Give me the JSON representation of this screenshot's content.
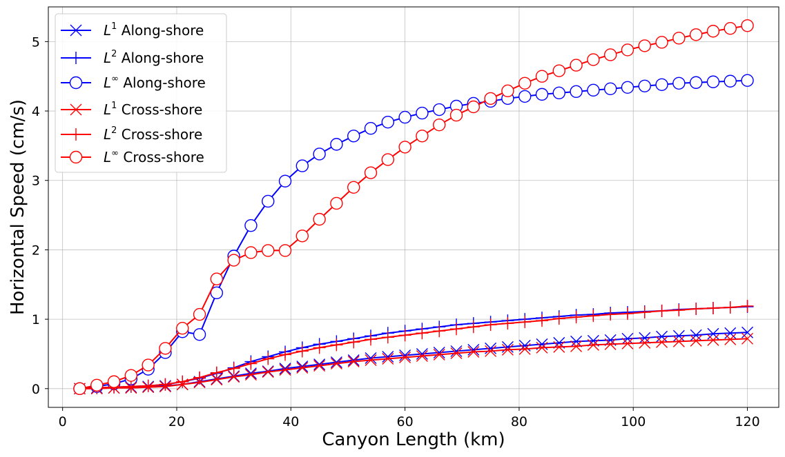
{
  "chart_data": {
    "type": "line",
    "xlabel": "Canyon Length (km)",
    "ylabel": "Horizontal Speed (cm/s)",
    "xlim": [
      -2.5,
      125.5
    ],
    "ylim": [
      -0.27,
      5.5
    ],
    "xticks": [
      0,
      20,
      40,
      60,
      80,
      100,
      120
    ],
    "yticks": [
      0,
      1,
      2,
      3,
      4,
      5
    ],
    "grid": true,
    "legend_position": "top-left",
    "x": [
      3,
      6,
      9,
      12,
      15,
      18,
      21,
      24,
      27,
      30,
      33,
      36,
      39,
      42,
      45,
      48,
      51,
      54,
      57,
      60,
      63,
      66,
      69,
      72,
      75,
      78,
      81,
      84,
      87,
      90,
      93,
      96,
      99,
      102,
      105,
      108,
      111,
      114,
      117,
      120
    ],
    "series": [
      {
        "name_base": "L",
        "name_sup": "1",
        "name_rest": " Along-shore",
        "color": "#0000ff",
        "marker": "x",
        "values": [
          0.0,
          0.01,
          0.01,
          0.02,
          0.03,
          0.04,
          0.06,
          0.1,
          0.14,
          0.18,
          0.22,
          0.25,
          0.29,
          0.32,
          0.35,
          0.38,
          0.41,
          0.44,
          0.46,
          0.48,
          0.5,
          0.52,
          0.54,
          0.56,
          0.58,
          0.6,
          0.62,
          0.64,
          0.66,
          0.68,
          0.69,
          0.7,
          0.72,
          0.73,
          0.75,
          0.76,
          0.77,
          0.79,
          0.8,
          0.81
        ]
      },
      {
        "name_base": "L",
        "name_sup": "2",
        "name_rest": " Along-shore",
        "color": "#0000ff",
        "marker": "plus",
        "values": [
          0.0,
          0.01,
          0.02,
          0.03,
          0.04,
          0.06,
          0.1,
          0.15,
          0.22,
          0.3,
          0.39,
          0.46,
          0.53,
          0.59,
          0.64,
          0.68,
          0.72,
          0.76,
          0.8,
          0.83,
          0.86,
          0.89,
          0.92,
          0.94,
          0.96,
          0.98,
          1.0,
          1.02,
          1.04,
          1.06,
          1.07,
          1.09,
          1.1,
          1.11,
          1.12,
          1.14,
          1.15,
          1.16,
          1.17,
          1.18
        ]
      },
      {
        "name_base": "L",
        "name_sup": "∞",
        "name_rest": " Along-shore",
        "color": "#0000ff",
        "marker": "circle",
        "values": [
          0.0,
          0.03,
          0.07,
          0.14,
          0.28,
          0.52,
          0.82,
          0.78,
          1.38,
          1.91,
          2.35,
          2.7,
          2.99,
          3.21,
          3.38,
          3.52,
          3.64,
          3.75,
          3.84,
          3.91,
          3.97,
          4.02,
          4.07,
          4.11,
          4.14,
          4.18,
          4.21,
          4.24,
          4.26,
          4.28,
          4.3,
          4.32,
          4.34,
          4.36,
          4.38,
          4.4,
          4.41,
          4.42,
          4.43,
          4.44
        ]
      },
      {
        "name_base": "L",
        "name_sup": "1",
        "name_rest": " Cross-shore",
        "color": "#ff0000",
        "marker": "x",
        "values": [
          0.0,
          0.0,
          0.01,
          0.01,
          0.02,
          0.03,
          0.06,
          0.09,
          0.13,
          0.17,
          0.2,
          0.24,
          0.27,
          0.3,
          0.33,
          0.36,
          0.39,
          0.41,
          0.43,
          0.45,
          0.47,
          0.49,
          0.51,
          0.53,
          0.54,
          0.56,
          0.57,
          0.59,
          0.6,
          0.61,
          0.63,
          0.64,
          0.65,
          0.66,
          0.67,
          0.68,
          0.69,
          0.7,
          0.71,
          0.72
        ]
      },
      {
        "name_base": "L",
        "name_sup": "2",
        "name_rest": " Cross-shore",
        "color": "#ff0000",
        "marker": "plus",
        "values": [
          0.0,
          0.01,
          0.02,
          0.03,
          0.04,
          0.06,
          0.1,
          0.16,
          0.23,
          0.29,
          0.36,
          0.43,
          0.49,
          0.54,
          0.59,
          0.63,
          0.67,
          0.71,
          0.74,
          0.77,
          0.8,
          0.83,
          0.86,
          0.89,
          0.92,
          0.94,
          0.96,
          0.98,
          1.01,
          1.03,
          1.05,
          1.07,
          1.08,
          1.1,
          1.12,
          1.13,
          1.15,
          1.16,
          1.17,
          1.19
        ]
      },
      {
        "name_base": "L",
        "name_sup": "∞",
        "name_rest": " Cross-shore",
        "color": "#ff0000",
        "marker": "circle",
        "values": [
          0.0,
          0.05,
          0.1,
          0.19,
          0.34,
          0.58,
          0.87,
          1.07,
          1.58,
          1.85,
          1.96,
          1.99,
          1.99,
          2.2,
          2.44,
          2.67,
          2.9,
          3.11,
          3.3,
          3.48,
          3.64,
          3.8,
          3.94,
          4.06,
          4.18,
          4.29,
          4.4,
          4.5,
          4.58,
          4.66,
          4.74,
          4.81,
          4.88,
          4.94,
          4.99,
          5.05,
          5.1,
          5.15,
          5.19,
          5.23
        ]
      }
    ]
  }
}
